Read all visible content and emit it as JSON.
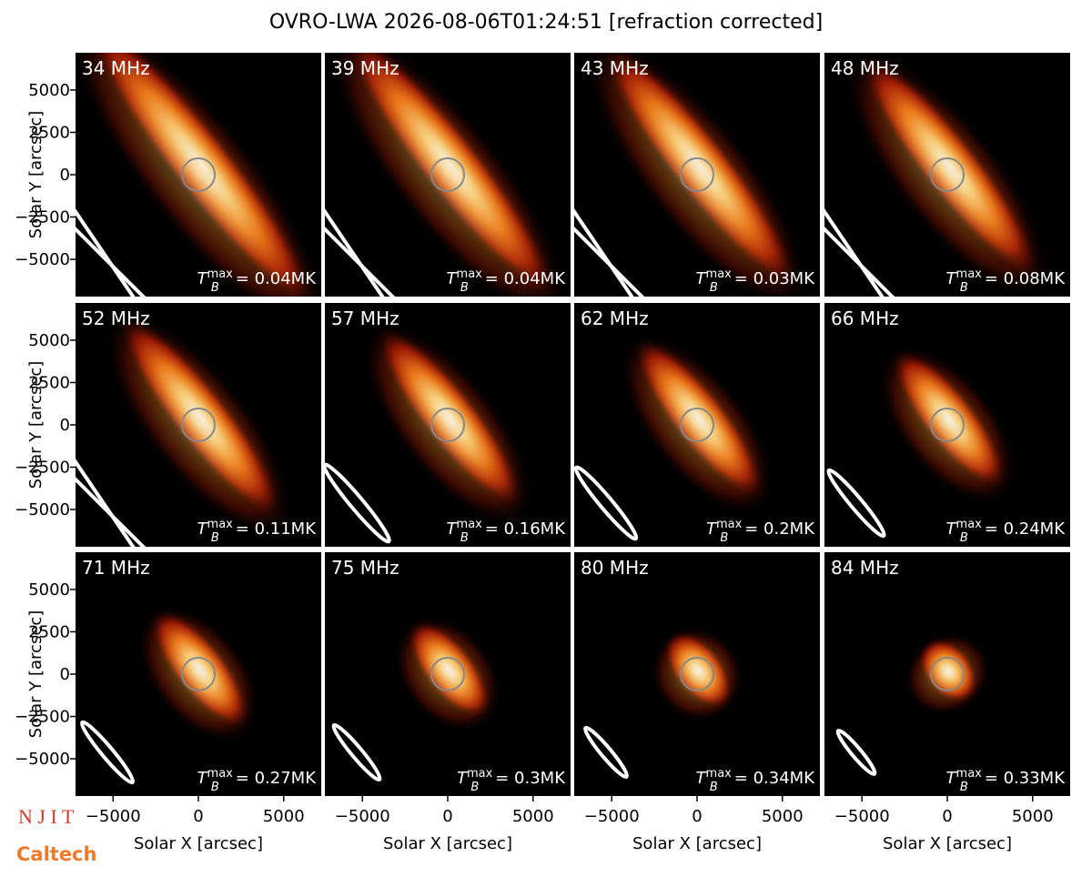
{
  "title": "OVRO-LWA 2026-08-06T01:24:51 [refraction corrected]",
  "axes": {
    "x_label": "Solar X [arcsec]",
    "y_label": "Solar Y [arcsec]",
    "xlim": [
      -7200,
      7200
    ],
    "ylim": [
      -7200,
      7200
    ],
    "xticks": [
      {
        "value": -5000,
        "label": "−5000"
      },
      0,
      5000
    ],
    "yticks": [
      {
        "value": -5000,
        "label": "−5000"
      },
      {
        "value": -2500,
        "label": "−2500"
      },
      0,
      2500,
      5000
    ]
  },
  "tmax_symbol": {
    "base": "T",
    "sub": "B",
    "sup": "max"
  },
  "panels": [
    {
      "frequency": "34 MHz",
      "tmax": "= 0.04MK"
    },
    {
      "frequency": "39 MHz",
      "tmax": "= 0.04MK"
    },
    {
      "frequency": "43 MHz",
      "tmax": "= 0.03MK"
    },
    {
      "frequency": "48 MHz",
      "tmax": "= 0.08MK"
    },
    {
      "frequency": "52 MHz",
      "tmax": "= 0.11MK"
    },
    {
      "frequency": "57 MHz",
      "tmax": "= 0.16MK"
    },
    {
      "frequency": "62 MHz",
      "tmax": "= 0.2MK"
    },
    {
      "frequency": "66 MHz",
      "tmax": "= 0.24MK"
    },
    {
      "frequency": "71 MHz",
      "tmax": "= 0.27MK"
    },
    {
      "frequency": "75 MHz",
      "tmax": "= 0.3MK"
    },
    {
      "frequency": "80 MHz",
      "tmax": "= 0.34MK"
    },
    {
      "frequency": "84 MHz",
      "tmax": "= 0.33MK"
    }
  ],
  "logos": {
    "top": "N J I T",
    "bottom": "Caltech"
  }
}
